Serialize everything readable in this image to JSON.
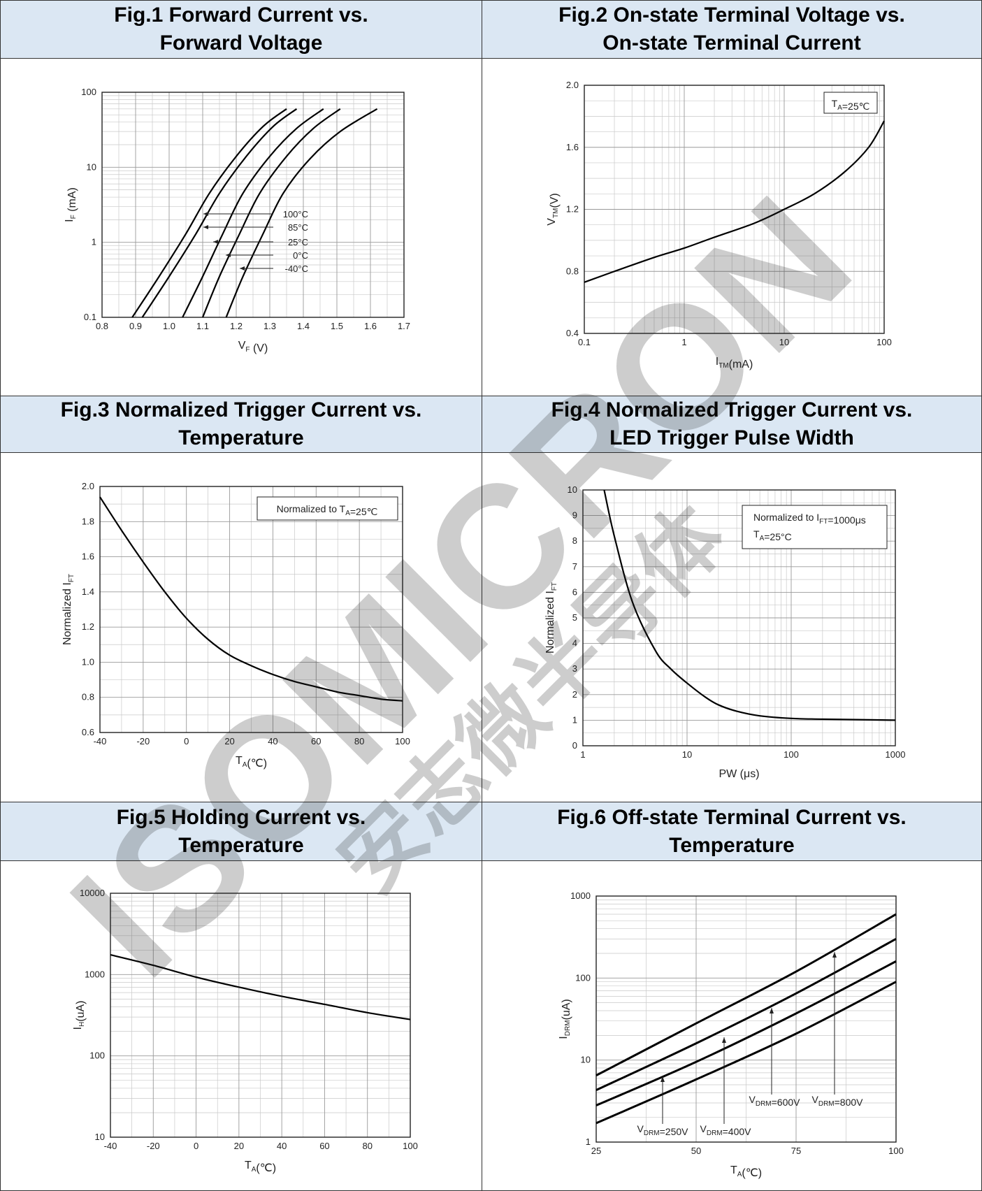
{
  "watermark": {
    "latin": "ISOMICRON",
    "cjk": "安志微半导体",
    "color": "#5b8fc7"
  },
  "figures": [
    {
      "title_line1": "Fig.1 Forward Current vs.",
      "title_line2": "Forward Voltage"
    },
    {
      "title_line1": "Fig.2 On-state Terminal Voltage vs.",
      "title_line2": "On-state Terminal Current"
    },
    {
      "title_line1": "Fig.3 Normalized Trigger Current vs.",
      "title_line2": "Temperature"
    },
    {
      "title_line1": "Fig.4 Normalized Trigger Current vs.",
      "title_line2": "LED Trigger Pulse Width"
    },
    {
      "title_line1": "Fig.5 Holding Current vs.",
      "title_line2": "Temperature"
    },
    {
      "title_line1": "Fig.6 Off-state Terminal Current vs.",
      "title_line2": "Temperature"
    }
  ],
  "chart_data": [
    {
      "type": "line",
      "title": "Fig.1 Forward Current vs. Forward Voltage",
      "xlabel": "V_F (V)",
      "ylabel": "I_F (mA)",
      "xscale": "linear",
      "yscale": "log",
      "xlim": [
        0.8,
        1.7
      ],
      "ylim": [
        0.1,
        100
      ],
      "xticks": [
        "0.8",
        "0.9",
        "1.0",
        "1.1",
        "1.2",
        "1.3",
        "1.4",
        "1.5",
        "1.6",
        "1.7"
      ],
      "yticks": [
        "0.1",
        "1",
        "10",
        "100"
      ],
      "grid": true,
      "series": [
        {
          "name": "100°C",
          "x": [
            0.89,
            0.97,
            1.05,
            1.12,
            1.2,
            1.28,
            1.35
          ],
          "y": [
            0.1,
            0.35,
            1.3,
            4.5,
            14,
            35,
            60
          ]
        },
        {
          "name": "85°C",
          "x": [
            0.92,
            1.0,
            1.08,
            1.15,
            1.23,
            1.31,
            1.38
          ],
          "y": [
            0.1,
            0.35,
            1.3,
            4.5,
            14,
            35,
            60
          ]
        },
        {
          "name": "25°C",
          "x": [
            1.04,
            1.1,
            1.16,
            1.22,
            1.3,
            1.38,
            1.46
          ],
          "y": [
            0.1,
            0.35,
            1.3,
            4.5,
            14,
            33,
            60
          ]
        },
        {
          "name": "0°C",
          "x": [
            1.1,
            1.15,
            1.21,
            1.27,
            1.35,
            1.43,
            1.51
          ],
          "y": [
            0.1,
            0.35,
            1.3,
            4.5,
            14,
            33,
            60
          ]
        },
        {
          "name": "-40°C",
          "x": [
            1.17,
            1.22,
            1.28,
            1.34,
            1.42,
            1.51,
            1.62
          ],
          "y": [
            0.1,
            0.35,
            1.3,
            4.5,
            13,
            30,
            60
          ]
        }
      ]
    },
    {
      "type": "line",
      "title": "Fig.2 On-state Terminal Voltage vs. On-state Terminal Current",
      "xlabel": "I_TM(mA)",
      "ylabel": "V_TM(V)",
      "xscale": "log",
      "yscale": "linear",
      "xlim": [
        0.1,
        100
      ],
      "ylim": [
        0.4,
        2.0
      ],
      "xticks": [
        "0.1",
        "1",
        "10",
        "100"
      ],
      "yticks": [
        "0.4",
        "0.8",
        "1.2",
        "1.6",
        "2.0"
      ],
      "annotation": "T_A=25℃",
      "grid": true,
      "series": [
        {
          "name": "",
          "x": [
            0.1,
            0.2,
            0.5,
            1,
            2,
            5,
            10,
            20,
            40,
            70,
            100
          ],
          "y": [
            0.73,
            0.8,
            0.89,
            0.95,
            1.02,
            1.11,
            1.2,
            1.3,
            1.44,
            1.6,
            1.77
          ]
        }
      ]
    },
    {
      "type": "line",
      "title": "Fig.3 Normalized Trigger Current vs. Temperature",
      "xlabel": "T_A(℃)",
      "ylabel": "Normalized I_FT",
      "xscale": "linear",
      "yscale": "linear",
      "xlim": [
        -40,
        100
      ],
      "ylim": [
        0.6,
        2.0
      ],
      "xticks": [
        "-40",
        "-20",
        "0",
        "20",
        "40",
        "60",
        "80",
        "100"
      ],
      "yticks": [
        "0.6",
        "0.8",
        "1.0",
        "1.2",
        "1.4",
        "1.6",
        "1.8",
        "2.0"
      ],
      "annotation": "Normalized to T_A=25℃",
      "grid": true,
      "series": [
        {
          "name": "",
          "x": [
            -40,
            -30,
            -20,
            -10,
            0,
            10,
            20,
            30,
            40,
            50,
            60,
            70,
            80,
            90,
            100
          ],
          "y": [
            1.94,
            1.75,
            1.57,
            1.4,
            1.25,
            1.13,
            1.04,
            0.98,
            0.93,
            0.89,
            0.86,
            0.83,
            0.81,
            0.79,
            0.78
          ]
        }
      ]
    },
    {
      "type": "line",
      "title": "Fig.4 Normalized Trigger Current vs. LED Trigger Pulse Width",
      "xlabel": "PW (μs)",
      "ylabel": "Normalized I_FT",
      "xscale": "log",
      "yscale": "linear",
      "xlim": [
        1,
        1000
      ],
      "ylim": [
        0,
        10
      ],
      "xticks": [
        "1",
        "10",
        "100",
        "1000"
      ],
      "yticks": [
        "0",
        "1",
        "2",
        "3",
        "4",
        "5",
        "6",
        "7",
        "8",
        "9",
        "10"
      ],
      "annotation": [
        "Normalized to I_FT=1000μs",
        "T_A=25°C"
      ],
      "grid": true,
      "series": [
        {
          "name": "",
          "x": [
            1.6,
            2,
            3,
            5,
            7,
            10,
            15,
            20,
            30,
            50,
            100,
            200,
            1000
          ],
          "y": [
            10,
            8.2,
            5.6,
            3.7,
            3.0,
            2.45,
            1.9,
            1.6,
            1.35,
            1.17,
            1.07,
            1.04,
            1.0
          ]
        }
      ]
    },
    {
      "type": "line",
      "title": "Fig.5 Holding Current vs. Temperature",
      "xlabel": "T_A(℃)",
      "ylabel": "I_H(uA)",
      "xscale": "linear",
      "yscale": "log",
      "xlim": [
        -40,
        100
      ],
      "ylim": [
        10,
        10000
      ],
      "xticks": [
        "-40",
        "-20",
        "0",
        "20",
        "40",
        "60",
        "80",
        "100"
      ],
      "yticks": [
        "10",
        "100",
        "1000",
        "10000"
      ],
      "grid": true,
      "series": [
        {
          "name": "",
          "x": [
            -40,
            -20,
            0,
            20,
            40,
            60,
            80,
            100
          ],
          "y": [
            1750,
            1300,
            930,
            700,
            540,
            430,
            340,
            280
          ]
        }
      ]
    },
    {
      "type": "line",
      "title": "Fig.6 Off-state Terminal Current vs. Temperature",
      "xlabel": "T_A(℃)",
      "ylabel": "I_DRM(uA)",
      "xscale": "linear",
      "yscale": "log",
      "xlim": [
        25,
        100
      ],
      "ylim": [
        1,
        1000
      ],
      "xticks": [
        "25",
        "50",
        "75",
        "100"
      ],
      "yticks": [
        "1",
        "10",
        "100",
        "1000"
      ],
      "grid": true,
      "series": [
        {
          "name": "V_DRM=800V",
          "x": [
            25,
            50,
            75,
            100
          ],
          "y": [
            6.5,
            28,
            120,
            600
          ]
        },
        {
          "name": "V_DRM=600V",
          "x": [
            25,
            50,
            75,
            100
          ],
          "y": [
            4.3,
            16,
            65,
            300
          ]
        },
        {
          "name": "V_DRM=400V",
          "x": [
            25,
            50,
            75,
            100
          ],
          "y": [
            2.8,
            9.5,
            37,
            160
          ]
        },
        {
          "name": "V_DRM=250V",
          "x": [
            25,
            50,
            75,
            100
          ],
          "y": [
            1.7,
            5.8,
            21,
            90
          ]
        }
      ]
    }
  ]
}
